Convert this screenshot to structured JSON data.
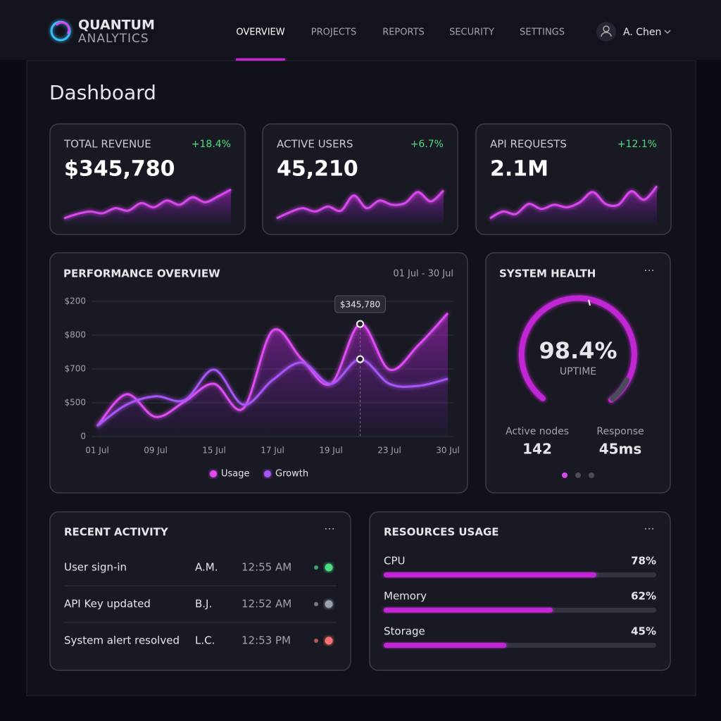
{
  "header": {
    "logo_line1": "QUANTUM",
    "logo_line2": "ANALYTICS",
    "nav": [
      "OVERVIEW",
      "PROJECTS",
      "REPORTS",
      "SECURITY",
      "SETTINGS"
    ],
    "active_nav": 0,
    "user": "A. Chen"
  },
  "page_title": "Dashboard",
  "kpis": [
    {
      "label": "TOTAL REVENUE",
      "value": "$345,780",
      "change": "+18.4%",
      "trend": [
        1,
        2,
        2.6,
        2.2,
        3.4,
        2.8,
        4.6,
        3.6,
        5.2,
        4.2,
        6,
        4.8,
        6.2,
        7.8
      ],
      "trend_lim": [
        0,
        10
      ]
    },
    {
      "label": "ACTIVE USERS",
      "value": "45,210",
      "change": "+6.7%",
      "trend": [
        1,
        2.4,
        3.4,
        2.6,
        3.8,
        2.8,
        6.4,
        3.4,
        5.2,
        4.2,
        4.6,
        7.2,
        5,
        7.6
      ],
      "trend_lim": [
        0,
        10
      ]
    },
    {
      "label": "API REQUESTS",
      "value": "2.1M",
      "change": "+12.1%",
      "trend": [
        1,
        2.6,
        2,
        4.4,
        3.2,
        4.2,
        3.6,
        4.8,
        7.2,
        4.4,
        4.2,
        7.4,
        5.4,
        8.6
      ],
      "trend_lim": [
        0,
        10
      ]
    }
  ],
  "performance": {
    "title": "PERFORMANCE OVERVIEW",
    "date_range": "01 Jul - 30 Jul",
    "chart": {
      "type": "line",
      "categories": [
        "01 Jul",
        null,
        "09 Jul",
        null,
        "15 Jul",
        null,
        "17 Jul",
        null,
        "19 Jul",
        null,
        "23 Jul",
        null,
        "30 Jul"
      ],
      "y_labels": [
        "0",
        "$500",
        "$700",
        "$800",
        "$200"
      ],
      "ylim": [
        0,
        4
      ],
      "grid": true,
      "series": [
        {
          "name": "Usage",
          "color": "#e04cf5",
          "values": [
            0.31,
            1.25,
            0.58,
            1.04,
            1.56,
            0.83,
            3.13,
            2.29,
            1.56,
            3.33,
            1.98,
            2.71,
            3.65
          ]
        },
        {
          "name": "Growth",
          "color": "#a855f7",
          "values": [
            0.31,
            0.94,
            1.19,
            1.08,
            1.98,
            0.94,
            1.67,
            2.19,
            1.56,
            2.29,
            1.56,
            1.5,
            1.71
          ]
        }
      ],
      "annotation": "$345,780",
      "annotation_index": 9
    }
  },
  "system_health": {
    "title": "SYSTEM HEALTH",
    "uptime": "98.4%",
    "uptime_label": "UPTIME",
    "stats": [
      {
        "label": "Active nodes",
        "value": "142"
      },
      {
        "label": "Response",
        "value": "45ms"
      }
    ],
    "pager_dots": 3,
    "active_dot": 0
  },
  "recent_activity": {
    "title": "RECENT ACTIVITY",
    "rows": [
      {
        "event": "User sign-in",
        "user": "A.M.",
        "time": "12:55 AM",
        "status_color": "#4ade80"
      },
      {
        "event": "API Key updated",
        "user": "B.J.",
        "time": "12:52 AM",
        "status_color": "#9ca3af"
      },
      {
        "event": "System alert resolved",
        "user": "L.C.",
        "time": "12:53 PM",
        "status_color": "#f87171"
      }
    ]
  },
  "resources": {
    "title": "RESOURCES USAGE",
    "xlim": [
      0,
      100
    ],
    "items": [
      {
        "name": "CPU",
        "value": 78,
        "value_label": "78%"
      },
      {
        "name": "Memory",
        "value": 62,
        "value_label": "62%"
      },
      {
        "name": "Storage",
        "value": 45,
        "value_label": "45%"
      }
    ]
  }
}
